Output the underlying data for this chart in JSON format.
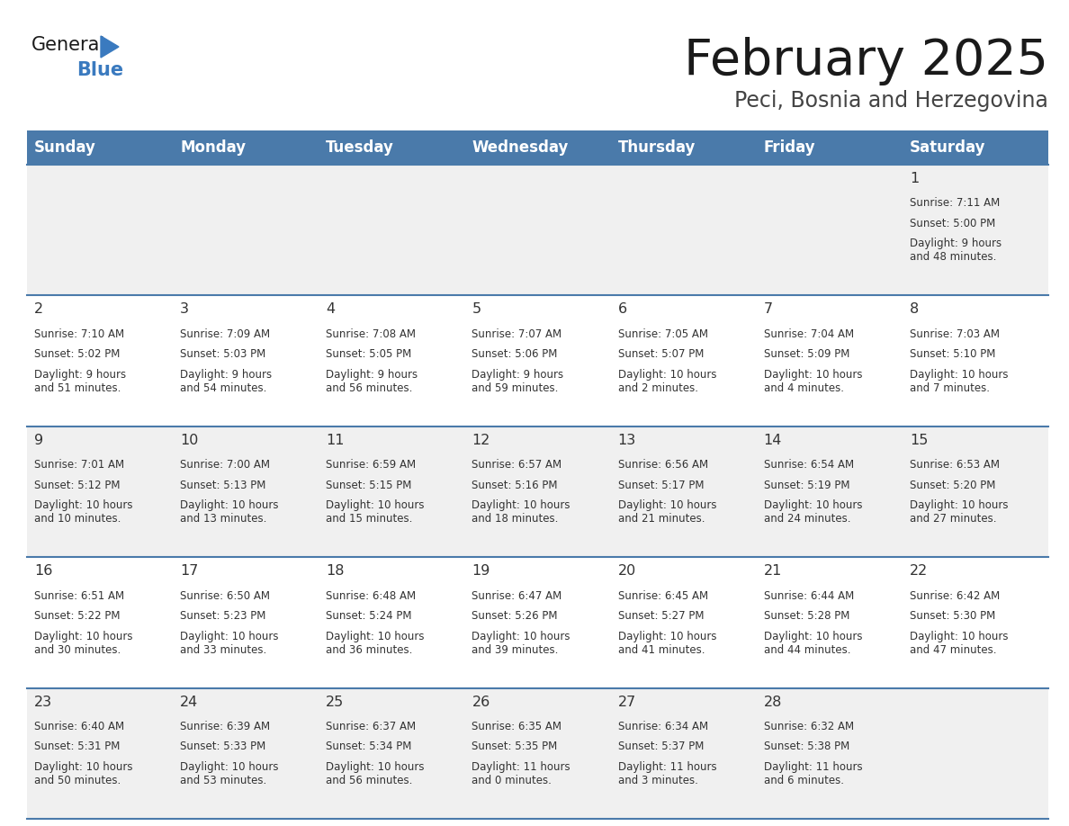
{
  "title": "February 2025",
  "subtitle": "Peci, Bosnia and Herzegovina",
  "header_bg_color": "#4a7aaa",
  "header_text_color": "#ffffff",
  "cell_bg_color_odd": "#f0f0f0",
  "cell_bg_color_even": "#ffffff",
  "grid_color": "#4a7aaa",
  "text_color": "#333333",
  "days_of_week": [
    "Sunday",
    "Monday",
    "Tuesday",
    "Wednesday",
    "Thursday",
    "Friday",
    "Saturday"
  ],
  "weeks": [
    [
      {
        "day": null,
        "sunrise": null,
        "sunset": null,
        "daylight": null
      },
      {
        "day": null,
        "sunrise": null,
        "sunset": null,
        "daylight": null
      },
      {
        "day": null,
        "sunrise": null,
        "sunset": null,
        "daylight": null
      },
      {
        "day": null,
        "sunrise": null,
        "sunset": null,
        "daylight": null
      },
      {
        "day": null,
        "sunrise": null,
        "sunset": null,
        "daylight": null
      },
      {
        "day": null,
        "sunrise": null,
        "sunset": null,
        "daylight": null
      },
      {
        "day": 1,
        "sunrise": "7:11 AM",
        "sunset": "5:00 PM",
        "daylight": "9 hours\nand 48 minutes."
      }
    ],
    [
      {
        "day": 2,
        "sunrise": "7:10 AM",
        "sunset": "5:02 PM",
        "daylight": "9 hours\nand 51 minutes."
      },
      {
        "day": 3,
        "sunrise": "7:09 AM",
        "sunset": "5:03 PM",
        "daylight": "9 hours\nand 54 minutes."
      },
      {
        "day": 4,
        "sunrise": "7:08 AM",
        "sunset": "5:05 PM",
        "daylight": "9 hours\nand 56 minutes."
      },
      {
        "day": 5,
        "sunrise": "7:07 AM",
        "sunset": "5:06 PM",
        "daylight": "9 hours\nand 59 minutes."
      },
      {
        "day": 6,
        "sunrise": "7:05 AM",
        "sunset": "5:07 PM",
        "daylight": "10 hours\nand 2 minutes."
      },
      {
        "day": 7,
        "sunrise": "7:04 AM",
        "sunset": "5:09 PM",
        "daylight": "10 hours\nand 4 minutes."
      },
      {
        "day": 8,
        "sunrise": "7:03 AM",
        "sunset": "5:10 PM",
        "daylight": "10 hours\nand 7 minutes."
      }
    ],
    [
      {
        "day": 9,
        "sunrise": "7:01 AM",
        "sunset": "5:12 PM",
        "daylight": "10 hours\nand 10 minutes."
      },
      {
        "day": 10,
        "sunrise": "7:00 AM",
        "sunset": "5:13 PM",
        "daylight": "10 hours\nand 13 minutes."
      },
      {
        "day": 11,
        "sunrise": "6:59 AM",
        "sunset": "5:15 PM",
        "daylight": "10 hours\nand 15 minutes."
      },
      {
        "day": 12,
        "sunrise": "6:57 AM",
        "sunset": "5:16 PM",
        "daylight": "10 hours\nand 18 minutes."
      },
      {
        "day": 13,
        "sunrise": "6:56 AM",
        "sunset": "5:17 PM",
        "daylight": "10 hours\nand 21 minutes."
      },
      {
        "day": 14,
        "sunrise": "6:54 AM",
        "sunset": "5:19 PM",
        "daylight": "10 hours\nand 24 minutes."
      },
      {
        "day": 15,
        "sunrise": "6:53 AM",
        "sunset": "5:20 PM",
        "daylight": "10 hours\nand 27 minutes."
      }
    ],
    [
      {
        "day": 16,
        "sunrise": "6:51 AM",
        "sunset": "5:22 PM",
        "daylight": "10 hours\nand 30 minutes."
      },
      {
        "day": 17,
        "sunrise": "6:50 AM",
        "sunset": "5:23 PM",
        "daylight": "10 hours\nand 33 minutes."
      },
      {
        "day": 18,
        "sunrise": "6:48 AM",
        "sunset": "5:24 PM",
        "daylight": "10 hours\nand 36 minutes."
      },
      {
        "day": 19,
        "sunrise": "6:47 AM",
        "sunset": "5:26 PM",
        "daylight": "10 hours\nand 39 minutes."
      },
      {
        "day": 20,
        "sunrise": "6:45 AM",
        "sunset": "5:27 PM",
        "daylight": "10 hours\nand 41 minutes."
      },
      {
        "day": 21,
        "sunrise": "6:44 AM",
        "sunset": "5:28 PM",
        "daylight": "10 hours\nand 44 minutes."
      },
      {
        "day": 22,
        "sunrise": "6:42 AM",
        "sunset": "5:30 PM",
        "daylight": "10 hours\nand 47 minutes."
      }
    ],
    [
      {
        "day": 23,
        "sunrise": "6:40 AM",
        "sunset": "5:31 PM",
        "daylight": "10 hours\nand 50 minutes."
      },
      {
        "day": 24,
        "sunrise": "6:39 AM",
        "sunset": "5:33 PM",
        "daylight": "10 hours\nand 53 minutes."
      },
      {
        "day": 25,
        "sunrise": "6:37 AM",
        "sunset": "5:34 PM",
        "daylight": "10 hours\nand 56 minutes."
      },
      {
        "day": 26,
        "sunrise": "6:35 AM",
        "sunset": "5:35 PM",
        "daylight": "11 hours\nand 0 minutes."
      },
      {
        "day": 27,
        "sunrise": "6:34 AM",
        "sunset": "5:37 PM",
        "daylight": "11 hours\nand 3 minutes."
      },
      {
        "day": 28,
        "sunrise": "6:32 AM",
        "sunset": "5:38 PM",
        "daylight": "11 hours\nand 6 minutes."
      },
      {
        "day": null,
        "sunrise": null,
        "sunset": null,
        "daylight": null
      }
    ]
  ],
  "logo_general_color": "#1a1a1a",
  "logo_blue_color": "#3a7abf",
  "logo_triangle_color": "#3a7abf"
}
